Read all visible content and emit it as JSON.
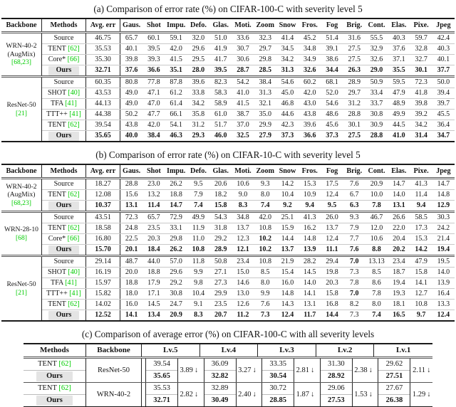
{
  "colors": {
    "citation_green": "#00cc00",
    "ours_bg": "#e4e4e4",
    "text": "#141414"
  },
  "shared_headers": {
    "backbone": "Backbone",
    "methods": "Methods",
    "avg_err": "Avg. err",
    "corruptions": [
      "Gaus.",
      "Shot",
      "Impu.",
      "Defo.",
      "Glas.",
      "Moti.",
      "Zoom",
      "Snow",
      "Fros.",
      "Fog",
      "Brig.",
      "Cont.",
      "Elas.",
      "Pixe.",
      "Jpeg"
    ]
  },
  "table_a": {
    "caption": "(a) Comparison of error rate (%) on CIFAR-100-C with severity level 5",
    "groups": [
      {
        "backbone_lines": [
          {
            "text": "WRN-40-2"
          },
          {
            "text": "(AugMix)"
          },
          {
            "text": "[68,23]",
            "cite": true
          }
        ],
        "rows": [
          {
            "method": "Source",
            "cite": "",
            "avg": "46.75",
            "values": [
              "65.7",
              "60.1",
              "59.1",
              "32.0",
              "51.0",
              "33.6",
              "32.3",
              "41.4",
              "45.2",
              "51.4",
              "31.6",
              "55.5",
              "40.3",
              "59.7",
              "42.4"
            ]
          },
          {
            "method": "TENT",
            "cite": "[62]",
            "avg": "35.53",
            "values": [
              "40.1",
              "39.5",
              "42.0",
              "29.6",
              "41.9",
              "30.7",
              "29.7",
              "34.5",
              "34.8",
              "39.1",
              "27.5",
              "32.9",
              "37.6",
              "32.8",
              "40.3"
            ]
          },
          {
            "method": "Core*",
            "cite": "[66]",
            "avg": "35.30",
            "values": [
              "39.8",
              "39.3",
              "41.5",
              "29.5",
              "41.7",
              "30.6",
              "29.8",
              "34.2",
              "34.9",
              "38.6",
              "27.5",
              "32.6",
              "37.1",
              "32.7",
              "40.1"
            ]
          },
          {
            "method": "Ours",
            "cite": "",
            "ours": true,
            "bold_all": true,
            "avg": "32.71",
            "values": [
              "37.6",
              "36.6",
              "35.1",
              "28.0",
              "39.5",
              "28.7",
              "28.5",
              "31.3",
              "32.6",
              "34.4",
              "26.3",
              "29.0",
              "35.5",
              "30.1",
              "37.7"
            ]
          }
        ]
      },
      {
        "backbone_lines": [
          {
            "text": "ResNet-50"
          },
          {
            "text": "[21]",
            "cite": true
          }
        ],
        "rows": [
          {
            "method": "Source",
            "cite": "",
            "avg": "60.35",
            "values": [
              "80.8",
              "77.8",
              "87.8",
              "39.6",
              "82.3",
              "54.2",
              "38.4",
              "54.6",
              "60.2",
              "68.1",
              "28.9",
              "50.9",
              "59.5",
              "72.3",
              "50.0"
            ]
          },
          {
            "method": "SHOT",
            "cite": "[40]",
            "avg": "43.53",
            "values": [
              "49.0",
              "47.1",
              "61.2",
              "33.8",
              "58.3",
              "41.0",
              "31.3",
              "45.0",
              "42.0",
              "52.0",
              "29.7",
              "33.4",
              "47.9",
              "41.8",
              "39.4"
            ]
          },
          {
            "method": "TFA",
            "cite": "[41]",
            "avg": "44.13",
            "values": [
              "49.0",
              "47.0",
              "61.4",
              "34.2",
              "58.9",
              "41.5",
              "32.1",
              "46.8",
              "43.0",
              "54.6",
              "31.2",
              "33.7",
              "48.9",
              "39.8",
              "39.7"
            ]
          },
          {
            "method": "TTT++",
            "cite": "[41]",
            "avg": "44.38",
            "values": [
              "50.2",
              "47.7",
              "66.1",
              "35.8",
              "61.0",
              "38.7",
              "35.0",
              "44.6",
              "43.8",
              "48.6",
              "28.8",
              "30.8",
              "49.9",
              "39.2",
              "45.5"
            ]
          },
          {
            "method": "TENT",
            "cite": "[62]",
            "avg": "39.54",
            "values": [
              "43.8",
              "42.0",
              "54.1",
              "31.2",
              "51.7",
              "37.0",
              "29.9",
              "42.3",
              "39.6",
              "45.6",
              "30.1",
              "30.9",
              "44.5",
              "34.2",
              "36.4"
            ]
          },
          {
            "method": "Ours",
            "cite": "",
            "ours": true,
            "bold_all": true,
            "avg": "35.65",
            "values": [
              "40.0",
              "38.4",
              "46.3",
              "29.3",
              "46.0",
              "32.5",
              "27.9",
              "37.3",
              "36.6",
              "37.3",
              "27.5",
              "28.8",
              "41.0",
              "31.4",
              "34.7"
            ]
          }
        ]
      }
    ]
  },
  "table_b": {
    "caption": "(b) Comparison of error rate (%) on CIFAR-10-C with severity level 5",
    "groups": [
      {
        "backbone_lines": [
          {
            "text": "WRN-40-2"
          },
          {
            "text": "(AugMix)"
          },
          {
            "text": "[68,23]",
            "cite": true
          }
        ],
        "rows": [
          {
            "method": "Source",
            "cite": "",
            "avg": "18.27",
            "values": [
              "28.8",
              "23.0",
              "26.2",
              "9.5",
              "20.6",
              "10.6",
              "9.3",
              "14.2",
              "15.3",
              "17.5",
              "7.6",
              "20.9",
              "14.7",
              "41.3",
              "14.7"
            ]
          },
          {
            "method": "TENT",
            "cite": "[62]",
            "avg": "12.08",
            "values": [
              "15.6",
              "13.2",
              "18.8",
              "7.9",
              "18.2",
              "9.0",
              "8.0",
              "10.4",
              "10.9",
              "12.4",
              "6.7",
              "10.0",
              "14.0",
              "11.4",
              "14.8"
            ]
          },
          {
            "method": "Ours",
            "cite": "",
            "ours": true,
            "bold_all": true,
            "avg": "10.37",
            "values": [
              "13.1",
              "11.4",
              "14.7",
              "7.4",
              "15.8",
              "8.3",
              "7.4",
              "9.2",
              "9.4",
              "9.5",
              "6.3",
              "7.8",
              "13.1",
              "9.4",
              "12.9"
            ]
          }
        ]
      },
      {
        "backbone_lines": [
          {
            "text": "WRN-28-10"
          },
          {
            "text": "[68]",
            "cite": true
          }
        ],
        "rows": [
          {
            "method": "Source",
            "cite": "",
            "avg": "43.51",
            "values": [
              "72.3",
              "65.7",
              "72.9",
              "49.9",
              "54.3",
              "34.8",
              "42.0",
              "25.1",
              "41.3",
              "26.0",
              "9.3",
              "46.7",
              "26.6",
              "58.5",
              "30.3"
            ]
          },
          {
            "method": "TENT",
            "cite": "[62]",
            "avg": "18.58",
            "values": [
              "24.8",
              "23.5",
              "33.1",
              "11.9",
              "31.8",
              "13.7",
              "10.8",
              "15.9",
              "16.2",
              "13.7",
              "7.9",
              "12.0",
              "22.0",
              "17.3",
              "24.2"
            ]
          },
          {
            "method": "Core*",
            "cite": "[66]",
            "avg": "16.80",
            "bold_idx": [
              6
            ],
            "values": [
              "22.5",
              "20.3",
              "29.8",
              "11.0",
              "29.2",
              "12.3",
              "10.2",
              "14.4",
              "14.8",
              "12.4",
              "7.7",
              "10.6",
              "20.4",
              "15.3",
              "21.4"
            ]
          },
          {
            "method": "Ours",
            "cite": "",
            "ours": true,
            "bold_all": true,
            "avg": "15.70",
            "values": [
              "20.1",
              "18.4",
              "26.2",
              "10.8",
              "28.9",
              "12.1",
              "10.2",
              "13.7",
              "13.9",
              "11.1",
              "7.6",
              "8.8",
              "20.2",
              "14.2",
              "19.4"
            ]
          }
        ]
      },
      {
        "backbone_lines": [
          {
            "text": "ResNet-50"
          },
          {
            "text": "[21]",
            "cite": true
          }
        ],
        "rows": [
          {
            "method": "Source",
            "cite": "",
            "avg": "29.14",
            "bold_idx": [
              10
            ],
            "values": [
              "48.7",
              "44.0",
              "57.0",
              "11.8",
              "50.8",
              "23.4",
              "10.8",
              "21.9",
              "28.2",
              "29.4",
              "7.0",
              "13.13",
              "23.4",
              "47.9",
              "19.5"
            ]
          },
          {
            "method": "SHOT",
            "cite": "[40]",
            "avg": "16.19",
            "values": [
              "20.0",
              "18.8",
              "29.6",
              "9.9",
              "27.1",
              "15.0",
              "8.5",
              "15.4",
              "14.5",
              "19.8",
              "7.3",
              "8.5",
              "18.7",
              "15.8",
              "14.0"
            ]
          },
          {
            "method": "TFA",
            "cite": "[41]",
            "avg": "15.97",
            "values": [
              "18.8",
              "17.9",
              "29.2",
              "9.8",
              "27.3",
              "14.6",
              "8.0",
              "16.0",
              "14.0",
              "20.3",
              "7.8",
              "8.6",
              "19.4",
              "14.1",
              "13.9"
            ]
          },
          {
            "method": "TTT++",
            "cite": "[41]",
            "avg": "15.82",
            "bold_idx": [
              10
            ],
            "values": [
              "18.0",
              "17.1",
              "30.8",
              "10.4",
              "29.9",
              "13.0",
              "9.9",
              "14.8",
              "14.1",
              "15.8",
              "7.0",
              "7.8",
              "19.3",
              "12.7",
              "16.4"
            ]
          },
          {
            "method": "TENT",
            "cite": "[62]",
            "avg": "14.02",
            "values": [
              "16.0",
              "14.5",
              "24.7",
              "9.1",
              "23.5",
              "12.6",
              "7.6",
              "14.3",
              "13.1",
              "16.8",
              "8.2",
              "8.0",
              "18.1",
              "10.8",
              "13.3"
            ]
          },
          {
            "method": "Ours",
            "cite": "",
            "ours": true,
            "bold_all": true,
            "normal_idx": [
              10
            ],
            "avg": "12.52",
            "values": [
              "14.1",
              "13.4",
              "20.9",
              "8.3",
              "20.7",
              "11.2",
              "7.3",
              "12.4",
              "11.7",
              "14.4",
              "7.3",
              "7.4",
              "16.5",
              "9.7",
              "12.4"
            ]
          }
        ]
      }
    ]
  },
  "table_c": {
    "caption": "(c) Comparison of average error (%) on CIFAR-100-C with all severity levels",
    "headers": {
      "methods": "Methods",
      "backbone": "Backbone",
      "levels": [
        "Lv.5",
        "Lv.4",
        "Lv.3",
        "Lv.2",
        "Lv.1"
      ]
    },
    "arrow": "↓",
    "groups": [
      {
        "method": "TENT",
        "cite": "[62]",
        "ours": "Ours",
        "backbone": "ResNet-50",
        "levels": [
          {
            "tent": "39.54",
            "ours": "35.65",
            "delta": "3.89"
          },
          {
            "tent": "36.09",
            "ours": "32.82",
            "delta": "3.27"
          },
          {
            "tent": "33.35",
            "ours": "30.54",
            "delta": "2.81"
          },
          {
            "tent": "31.30",
            "ours": "28.92",
            "delta": "2.38"
          },
          {
            "tent": "29.62",
            "ours": "27.51",
            "delta": "2.11"
          }
        ]
      },
      {
        "method": "TENT",
        "cite": "[62]",
        "ours": "Ours",
        "backbone": "WRN-40-2",
        "levels": [
          {
            "tent": "35.53",
            "ours": "32.71",
            "delta": "2.82"
          },
          {
            "tent": "32.89",
            "ours": "30.49",
            "delta": "2.40"
          },
          {
            "tent": "30.72",
            "ours": "28.85",
            "delta": "1.87"
          },
          {
            "tent": "29.06",
            "ours": "27.53",
            "delta": "1.53"
          },
          {
            "tent": "27.67",
            "ours": "26.38",
            "delta": "1.29"
          }
        ]
      }
    ]
  }
}
